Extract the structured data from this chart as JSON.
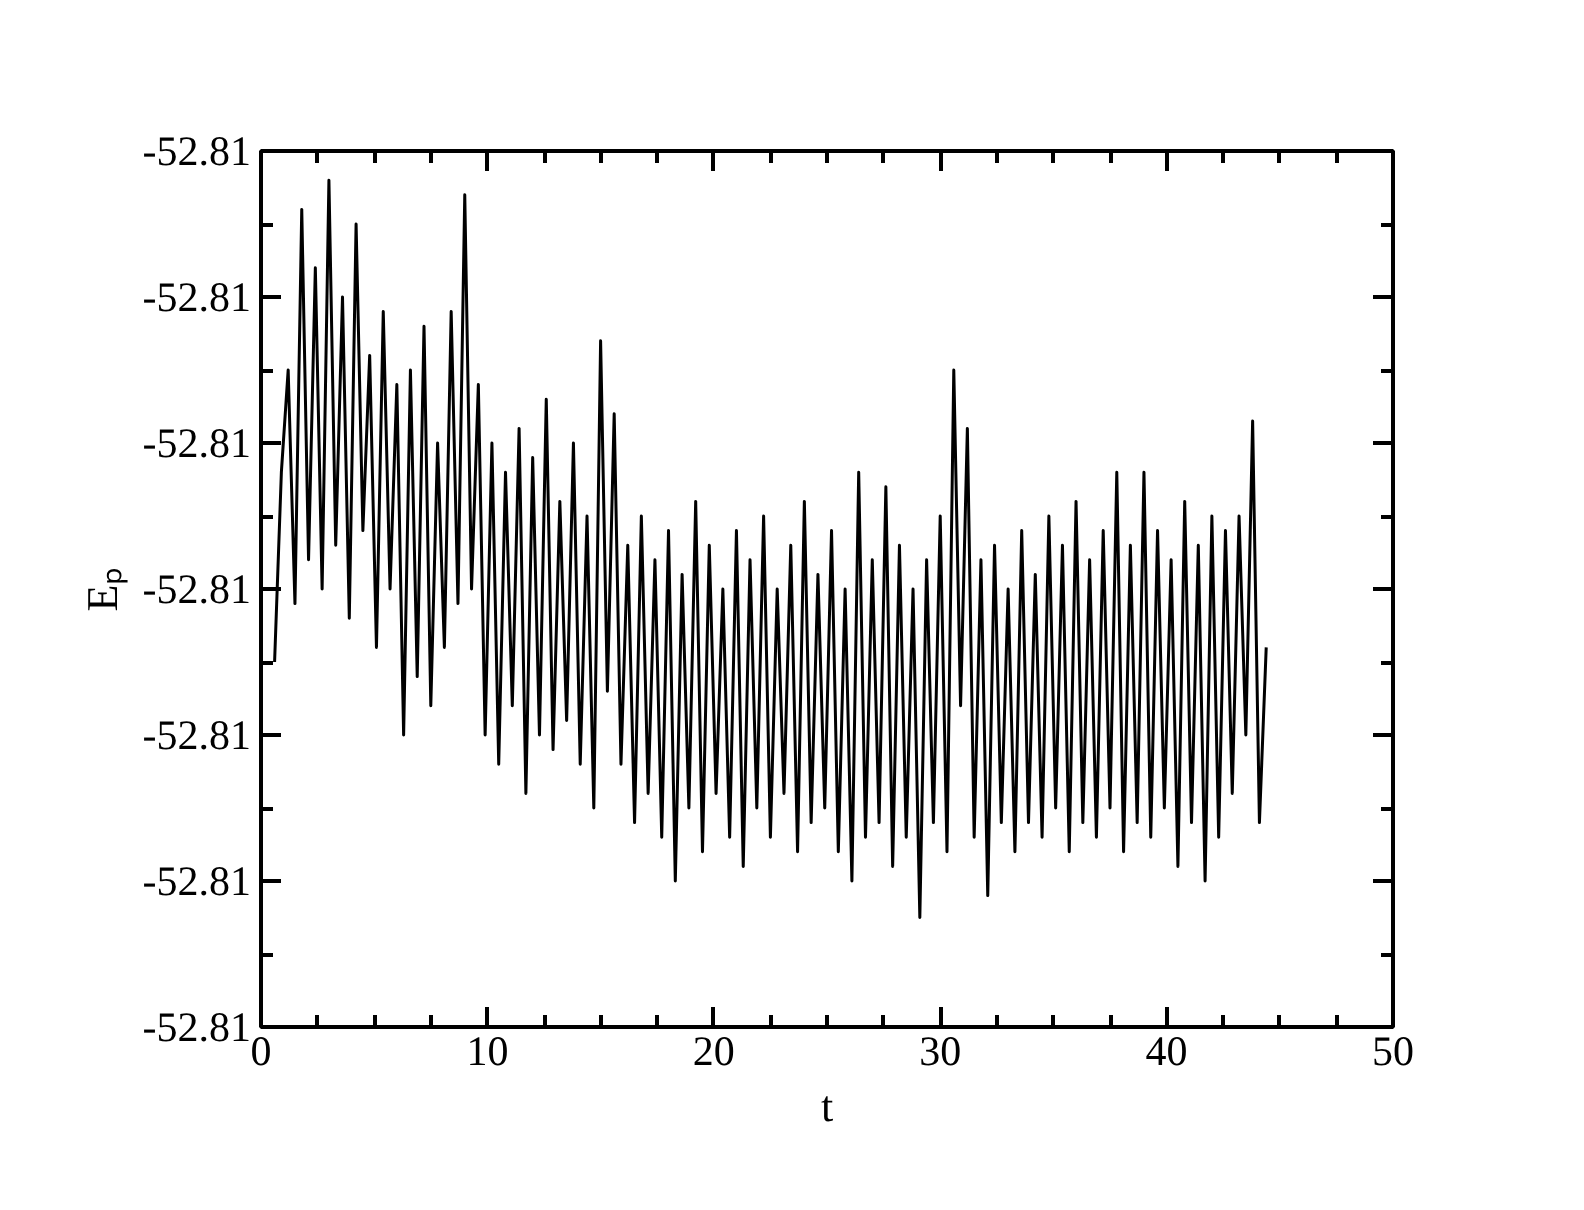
{
  "chart_data": {
    "type": "line",
    "xlabel": "t",
    "ylabel": "Eₚ",
    "xlim": [
      0,
      50
    ],
    "xticks": [
      0,
      10,
      20,
      30,
      40,
      50
    ],
    "ylim": [
      -52.813,
      -52.807
    ],
    "yticks": [
      {
        "value": -52.813,
        "label": "-52.81"
      },
      {
        "value": -52.812,
        "label": "-52.81"
      },
      {
        "value": -52.811,
        "label": "-52.81"
      },
      {
        "value": -52.81,
        "label": "-52.81"
      },
      {
        "value": -52.809,
        "label": "-52.81"
      },
      {
        "value": -52.808,
        "label": "-52.81"
      },
      {
        "value": -52.807,
        "label": "-52.81"
      }
    ],
    "grid": false,
    "marker": "none",
    "line_style": "solid",
    "series": [
      {
        "color": "#000000",
        "x": [
          0.6,
          0.9,
          1.2,
          1.5,
          1.8,
          2.1,
          2.4,
          2.7,
          3.0,
          3.3,
          3.6,
          3.9,
          4.2,
          4.5,
          4.8,
          5.1,
          5.4,
          5.7,
          6.0,
          6.3,
          6.6,
          6.9,
          7.2,
          7.5,
          7.8,
          8.1,
          8.4,
          8.7,
          9.0,
          9.3,
          9.6,
          9.9,
          10.2,
          10.5,
          10.8,
          11.1,
          11.4,
          11.7,
          12.0,
          12.3,
          12.6,
          12.9,
          13.2,
          13.5,
          13.8,
          14.1,
          14.4,
          14.7,
          15.0,
          15.3,
          15.6,
          15.9,
          16.2,
          16.5,
          16.8,
          17.1,
          17.4,
          17.7,
          18.0,
          18.3,
          18.6,
          18.9,
          19.2,
          19.5,
          19.8,
          20.1,
          20.4,
          20.7,
          21.0,
          21.3,
          21.6,
          21.9,
          22.2,
          22.5,
          22.8,
          23.1,
          23.4,
          23.7,
          24.0,
          24.3,
          24.6,
          24.9,
          25.2,
          25.5,
          25.8,
          26.1,
          26.4,
          26.7,
          27.0,
          27.3,
          27.6,
          27.9,
          28.2,
          28.5,
          28.8,
          29.1,
          29.4,
          29.7,
          30.0,
          30.3,
          30.6,
          30.9,
          31.2,
          31.5,
          31.8,
          32.1,
          32.4,
          32.7,
          33.0,
          33.3,
          33.6,
          33.9,
          34.2,
          34.5,
          34.8,
          35.1,
          35.4,
          35.7,
          36.0,
          36.3,
          36.6,
          36.9,
          37.2,
          37.5,
          37.8,
          38.1,
          38.4,
          38.7,
          39.0,
          39.3,
          39.6,
          39.9,
          40.2,
          40.5,
          40.8,
          41.1,
          41.4,
          41.7,
          42.0,
          42.3,
          42.6,
          42.9,
          43.2,
          43.5,
          43.8,
          44.1,
          44.4
        ],
        "values": [
          -52.8105,
          -52.8092,
          -52.8085,
          -52.8101,
          -52.8074,
          -52.8098,
          -52.8078,
          -52.81,
          -52.8072,
          -52.8097,
          -52.808,
          -52.8102,
          -52.8075,
          -52.8096,
          -52.8084,
          -52.8104,
          -52.8081,
          -52.81,
          -52.8086,
          -52.811,
          -52.8085,
          -52.8106,
          -52.8082,
          -52.8108,
          -52.809,
          -52.8104,
          -52.8081,
          -52.8101,
          -52.8073,
          -52.81,
          -52.8086,
          -52.811,
          -52.809,
          -52.8112,
          -52.8092,
          -52.8108,
          -52.8089,
          -52.8114,
          -52.8091,
          -52.811,
          -52.8087,
          -52.8111,
          -52.8094,
          -52.8109,
          -52.809,
          -52.8112,
          -52.8095,
          -52.8115,
          -52.8083,
          -52.8107,
          -52.8088,
          -52.8112,
          -52.8097,
          -52.8116,
          -52.8095,
          -52.8114,
          -52.8098,
          -52.8117,
          -52.8096,
          -52.812,
          -52.8099,
          -52.8115,
          -52.8094,
          -52.8118,
          -52.8097,
          -52.8114,
          -52.81,
          -52.8117,
          -52.8096,
          -52.8119,
          -52.8098,
          -52.8115,
          -52.8095,
          -52.8117,
          -52.81,
          -52.8114,
          -52.8097,
          -52.8118,
          -52.8094,
          -52.8116,
          -52.8099,
          -52.8115,
          -52.8096,
          -52.8118,
          -52.81,
          -52.812,
          -52.8092,
          -52.8117,
          -52.8098,
          -52.8116,
          -52.8093,
          -52.8119,
          -52.8097,
          -52.8117,
          -52.81,
          -52.81225,
          -52.8098,
          -52.8116,
          -52.8095,
          -52.8118,
          -52.8085,
          -52.8108,
          -52.8089,
          -52.8117,
          -52.8098,
          -52.8121,
          -52.8097,
          -52.8116,
          -52.81,
          -52.8118,
          -52.8096,
          -52.8116,
          -52.8099,
          -52.8117,
          -52.8095,
          -52.8115,
          -52.8097,
          -52.8118,
          -52.8094,
          -52.8116,
          -52.8098,
          -52.8117,
          -52.8096,
          -52.8115,
          -52.8092,
          -52.8118,
          -52.8097,
          -52.8116,
          -52.8092,
          -52.8117,
          -52.8096,
          -52.8115,
          -52.8098,
          -52.8119,
          -52.8094,
          -52.8116,
          -52.8097,
          -52.812,
          -52.8095,
          -52.8117,
          -52.8096,
          -52.8114,
          -52.8095,
          -52.811,
          -52.80885,
          -52.8116,
          -52.8104
        ]
      }
    ]
  }
}
